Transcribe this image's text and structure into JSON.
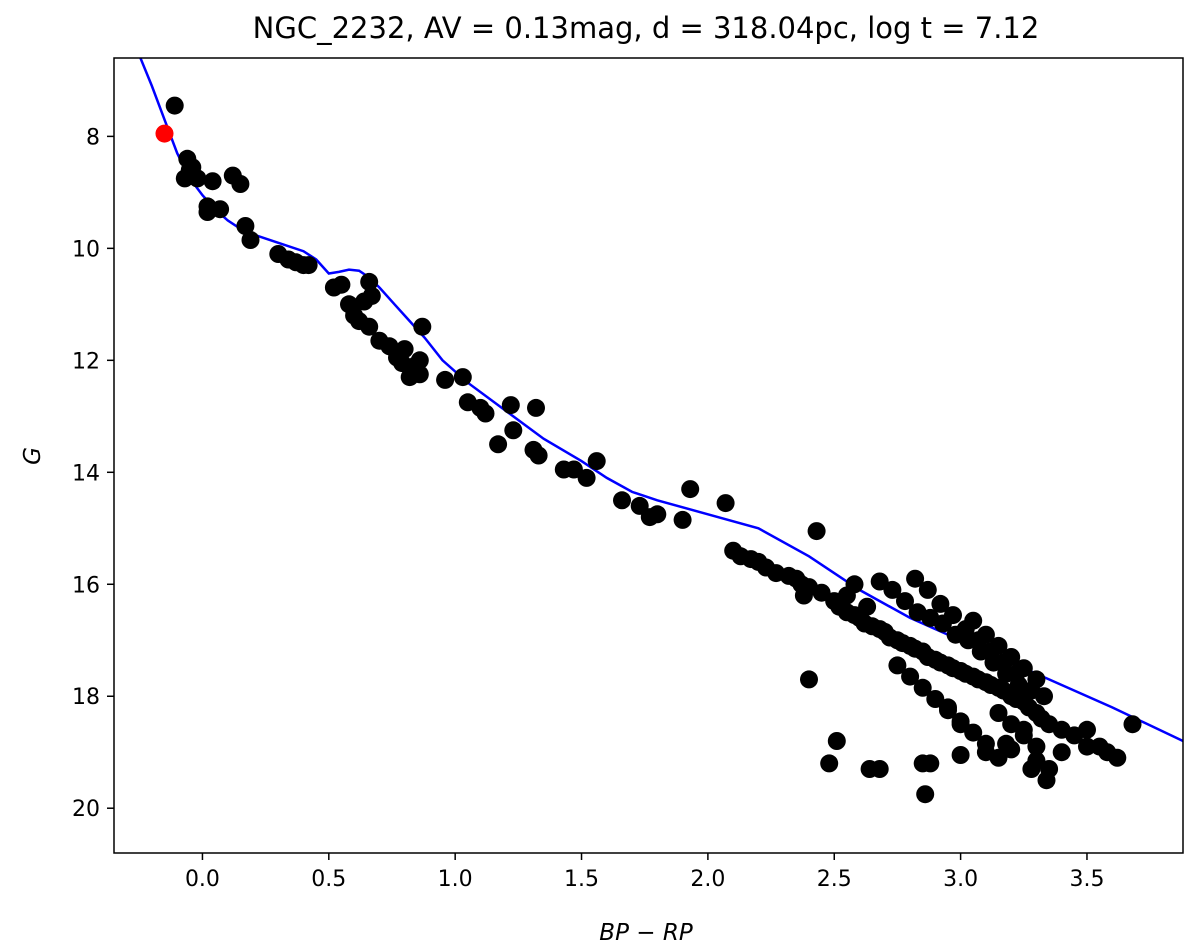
{
  "chart_data": {
    "type": "scatter",
    "title": "NGC_2232, AV = 0.13mag, d = 318.04pc, log t = 7.12",
    "xlabel": "BP − RP",
    "ylabel": "G",
    "xlim": [
      -0.35,
      3.88
    ],
    "ylim": [
      20.8,
      6.6
    ],
    "y_inverted": true,
    "grid": false,
    "x_ticks": [
      0.0,
      0.5,
      1.0,
      1.5,
      2.0,
      2.5,
      3.0,
      3.5
    ],
    "x_tick_labels": [
      "0.0",
      "0.5",
      "1.0",
      "1.5",
      "2.0",
      "2.5",
      "3.0",
      "3.5"
    ],
    "y_ticks": [
      8,
      10,
      12,
      14,
      16,
      18,
      20
    ],
    "y_tick_labels": [
      "8",
      "10",
      "12",
      "14",
      "16",
      "18",
      "20"
    ],
    "colors": {
      "members": "#000000",
      "highlight": "#ff0000",
      "isochrone": "#0000ff"
    },
    "series": [
      {
        "type": "line",
        "color": "#0000ff",
        "x": [
          -0.25,
          -0.2,
          -0.15,
          -0.1,
          -0.05,
          0.0,
          0.05,
          0.1,
          0.15,
          0.2,
          0.3,
          0.4,
          0.45,
          0.5,
          0.54,
          0.58,
          0.62,
          0.66,
          0.7,
          0.76,
          0.82,
          0.88,
          0.95,
          1.05,
          1.2,
          1.35,
          1.5,
          1.6,
          1.7,
          1.8,
          2.0,
          2.2,
          2.4,
          2.6,
          2.8,
          3.0,
          3.2,
          3.4,
          3.6,
          3.88
        ],
        "y": [
          6.55,
          7.1,
          7.7,
          8.3,
          8.75,
          9.05,
          9.3,
          9.5,
          9.65,
          9.75,
          9.9,
          10.05,
          10.2,
          10.45,
          10.42,
          10.38,
          10.4,
          10.52,
          10.7,
          11.0,
          11.3,
          11.6,
          12.0,
          12.4,
          12.9,
          13.4,
          13.8,
          14.1,
          14.35,
          14.5,
          14.75,
          15.0,
          15.5,
          16.1,
          16.6,
          17.0,
          17.4,
          17.8,
          18.2,
          18.8
        ]
      },
      {
        "type": "scatter",
        "color": "#000000",
        "x": [
          -0.11,
          -0.06,
          -0.05,
          -0.07,
          -0.04,
          -0.02,
          0.02,
          0.07,
          0.12,
          0.15,
          0.02,
          0.04,
          0.17,
          0.19,
          0.3,
          0.34,
          0.37,
          0.4,
          0.42,
          0.52,
          0.55,
          0.58,
          0.6,
          0.64,
          0.66,
          0.67,
          0.62,
          0.66,
          0.7,
          0.74,
          0.77,
          0.79,
          0.8,
          0.84,
          0.82,
          0.86,
          0.87,
          0.86,
          0.96,
          1.03,
          1.05,
          1.1,
          1.12,
          1.17,
          1.23,
          1.22,
          1.31,
          1.33,
          1.32,
          1.43,
          1.47,
          1.52,
          1.56,
          1.66,
          1.73,
          1.77,
          1.8,
          1.9,
          1.93,
          2.07,
          2.1,
          2.13,
          2.17,
          2.2,
          2.23,
          2.27,
          2.32,
          2.35,
          2.37,
          2.4,
          2.45,
          2.38,
          2.43,
          2.5,
          2.52,
          2.55,
          2.58,
          2.6,
          2.62,
          2.65,
          2.68,
          2.7,
          2.72,
          2.75,
          2.77,
          2.8,
          2.82,
          2.85,
          2.87,
          2.9,
          2.92,
          2.95,
          2.97,
          3.0,
          3.02,
          3.05,
          3.07,
          3.1,
          3.12,
          3.15,
          3.17,
          3.2,
          3.22,
          3.25,
          3.27,
          3.3,
          3.32,
          3.35,
          3.4,
          3.45,
          2.55,
          2.58,
          2.63,
          2.68,
          2.73,
          2.78,
          2.83,
          2.88,
          2.93,
          2.98,
          3.03,
          3.08,
          3.13,
          3.18,
          3.23,
          3.28,
          3.33,
          2.75,
          2.8,
          2.85,
          2.9,
          2.95,
          3.0,
          3.05,
          3.1,
          3.15,
          3.2,
          3.25,
          3.3,
          3.05,
          3.1,
          3.15,
          3.2,
          3.25,
          3.3,
          2.82,
          2.87,
          2.92,
          2.97,
          3.02,
          3.07,
          3.12,
          3.17,
          3.22,
          2.85,
          2.95,
          3.0,
          3.1,
          3.15,
          3.2,
          3.25,
          3.3,
          3.35,
          3.5,
          3.55,
          3.58,
          3.62,
          3.68,
          2.4,
          2.48,
          2.51,
          2.64,
          2.68,
          2.86,
          2.88,
          3.0,
          3.18,
          3.28,
          3.34,
          3.4,
          3.5
        ],
        "y": [
          7.45,
          8.4,
          8.6,
          8.75,
          8.55,
          8.75,
          9.25,
          9.3,
          8.7,
          8.85,
          9.35,
          8.8,
          9.6,
          9.85,
          10.1,
          10.2,
          10.25,
          10.3,
          10.3,
          10.7,
          10.65,
          11.0,
          11.2,
          10.95,
          10.6,
          10.85,
          11.3,
          11.4,
          11.65,
          11.75,
          11.95,
          12.05,
          11.8,
          12.1,
          12.3,
          12.25,
          11.4,
          12.0,
          12.35,
          12.3,
          12.75,
          12.85,
          12.95,
          13.5,
          13.25,
          12.8,
          13.6,
          13.7,
          12.85,
          13.95,
          13.95,
          14.1,
          13.8,
          14.5,
          14.6,
          14.8,
          14.75,
          14.85,
          14.3,
          14.55,
          15.4,
          15.5,
          15.55,
          15.6,
          15.7,
          15.8,
          15.85,
          15.9,
          16.0,
          16.05,
          16.15,
          16.2,
          15.05,
          16.3,
          16.4,
          16.5,
          16.55,
          16.6,
          16.7,
          16.75,
          16.8,
          16.85,
          16.95,
          17.0,
          17.05,
          17.1,
          17.15,
          17.2,
          17.3,
          17.35,
          17.4,
          17.45,
          17.5,
          17.55,
          17.6,
          17.65,
          17.7,
          17.75,
          17.8,
          17.85,
          17.9,
          18.0,
          18.05,
          18.1,
          18.2,
          18.3,
          18.4,
          18.5,
          18.6,
          18.7,
          16.2,
          16.0,
          16.4,
          15.95,
          16.1,
          16.3,
          16.5,
          16.6,
          16.7,
          16.9,
          17.0,
          17.2,
          17.4,
          17.6,
          17.8,
          17.9,
          18.0,
          17.45,
          17.65,
          17.85,
          18.05,
          18.25,
          18.45,
          18.65,
          18.85,
          18.3,
          18.5,
          18.7,
          18.9,
          16.65,
          16.9,
          17.1,
          17.3,
          17.5,
          17.7,
          15.9,
          16.1,
          16.35,
          16.55,
          16.8,
          17.0,
          17.2,
          17.4,
          17.6,
          19.2,
          18.2,
          18.5,
          19.0,
          19.1,
          18.95,
          18.6,
          19.15,
          19.3,
          18.6,
          18.9,
          19.0,
          19.1,
          18.5,
          17.7,
          19.2,
          18.8,
          19.3,
          19.3,
          19.75,
          19.2,
          19.05,
          18.85,
          19.3,
          19.5,
          19.0,
          18.9
        ]
      },
      {
        "type": "scatter",
        "color": "#ff0000",
        "x": [
          -0.15
        ],
        "y": [
          7.95
        ]
      }
    ]
  }
}
